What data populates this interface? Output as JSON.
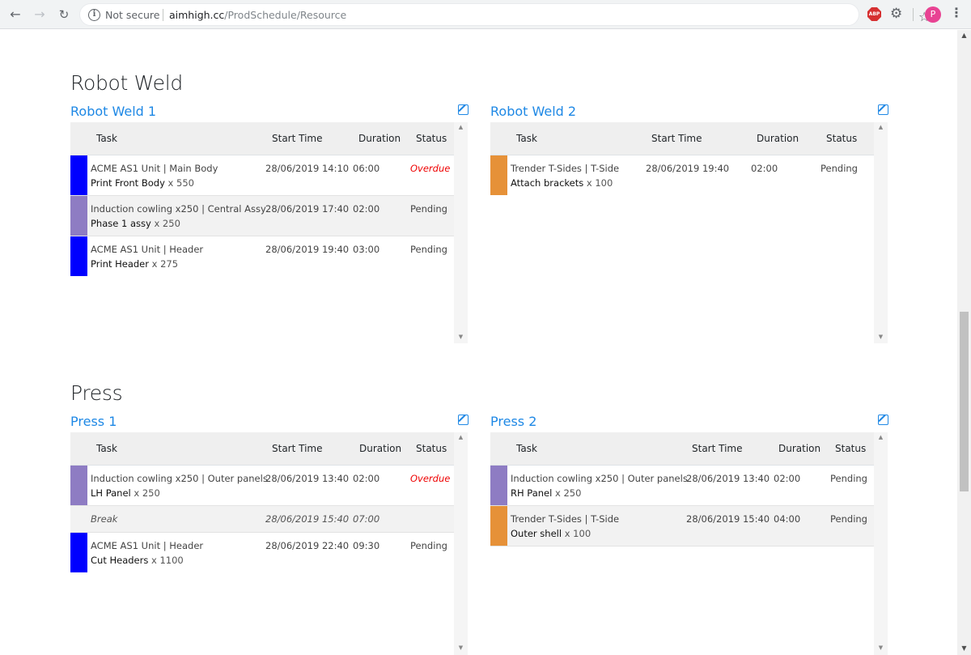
{
  "browser": {
    "not_secure": "Not secure",
    "url_host": "aimhigh.cc",
    "url_path": "/ProdSchedule/Resource",
    "avatar_letter": "P",
    "abp_label": "ABP"
  },
  "columns": {
    "task": "Task",
    "start_time": "Start Time",
    "duration": "Duration",
    "status": "Status"
  },
  "colors": {
    "blue": "#0000ff",
    "purple": "#8e7cc3",
    "orange": "#e69138"
  },
  "sections": [
    {
      "title": "Robot Weld",
      "resources": [
        {
          "name": "Robot Weld 1",
          "rows": [
            {
              "job": "ACME AS1 Unit | Main Body",
              "op": "Print Front Body",
              "qty": "x 550",
              "start": "28/06/2019 14:10",
              "duration": "06:00",
              "status": "Overdue"
            },
            {
              "job": "Induction cowling x250 | Central Assy",
              "op": "Phase 1 assy",
              "qty": "x 250",
              "start": "28/06/2019 17:40",
              "duration": "02:00",
              "status": "Pending"
            },
            {
              "job": "ACME AS1 Unit | Header",
              "op": "Print Header",
              "qty": "x 275",
              "start": "28/06/2019 19:40",
              "duration": "03:00",
              "status": "Pending"
            }
          ]
        },
        {
          "name": "Robot Weld 2",
          "rows": [
            {
              "job": "Trender T-Sides | T-Side",
              "op": "Attach brackets",
              "qty": "x 100",
              "start": "28/06/2019 19:40",
              "duration": "02:00",
              "status": "Pending"
            }
          ]
        }
      ]
    },
    {
      "title": "Press",
      "resources": [
        {
          "name": "Press 1",
          "rows": [
            {
              "job": "Induction cowling x250 | Outer panels",
              "op": "LH Panel",
              "qty": "x 250",
              "start": "28/06/2019 13:40",
              "duration": "02:00",
              "status": "Overdue"
            },
            {
              "break_label": "Break",
              "start": "28/06/2019 15:40",
              "duration": "07:00"
            },
            {
              "job": "ACME AS1 Unit | Header",
              "op": "Cut Headers",
              "qty": "x 1100",
              "start": "28/06/2019 22:40",
              "duration": "09:30",
              "status": "Pending"
            }
          ]
        },
        {
          "name": "Press 2",
          "rows": [
            {
              "job": "Induction cowling x250 | Outer panels",
              "op": "RH Panel",
              "qty": "x 250",
              "start": "28/06/2019 13:40",
              "duration": "02:00",
              "status": "Pending"
            },
            {
              "job": "Trender T-Sides | T-Side",
              "op": "Outer shell",
              "qty": "x 100",
              "start": "28/06/2019 15:40",
              "duration": "04:00",
              "status": "Pending"
            }
          ]
        }
      ]
    }
  ]
}
